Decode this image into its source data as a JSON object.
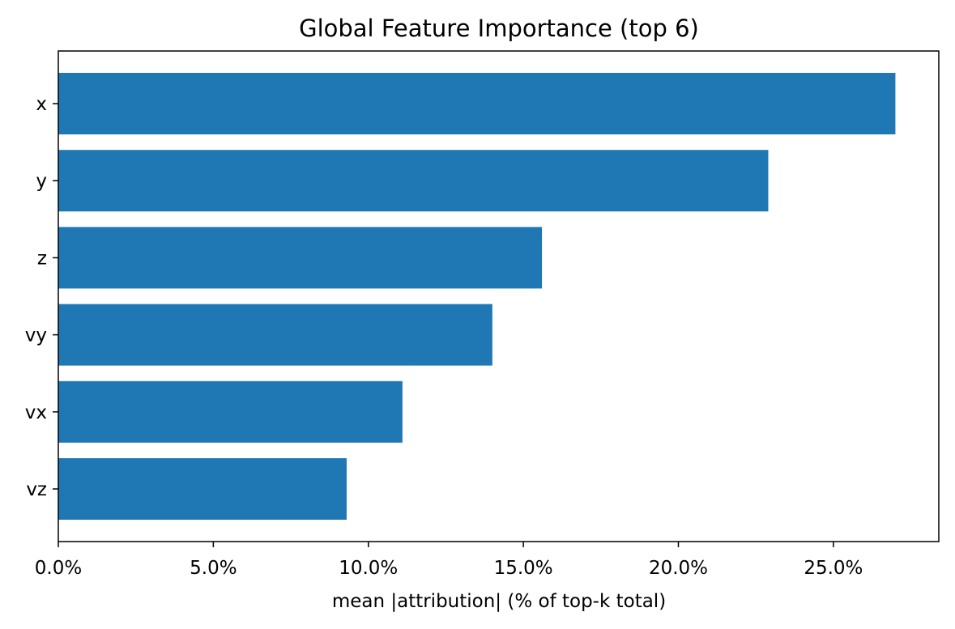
{
  "chart_data": {
    "type": "bar",
    "orientation": "horizontal",
    "title": "Global Feature Importance (top 6)",
    "xlabel": "mean |attribution| (% of top-k total)",
    "ylabel": "",
    "categories": [
      "x",
      "y",
      "z",
      "vy",
      "vx",
      "vz"
    ],
    "values": [
      27.0,
      22.9,
      15.6,
      14.0,
      11.1,
      9.3
    ],
    "xlim": [
      0,
      28.4
    ],
    "xticks": [
      0,
      5,
      10,
      15,
      20,
      25
    ],
    "xtick_labels": [
      "0.0%",
      "5.0%",
      "10.0%",
      "15.0%",
      "20.0%",
      "25.0%"
    ],
    "bar_color": "#1f77b4",
    "grid": false,
    "legend": false
  }
}
